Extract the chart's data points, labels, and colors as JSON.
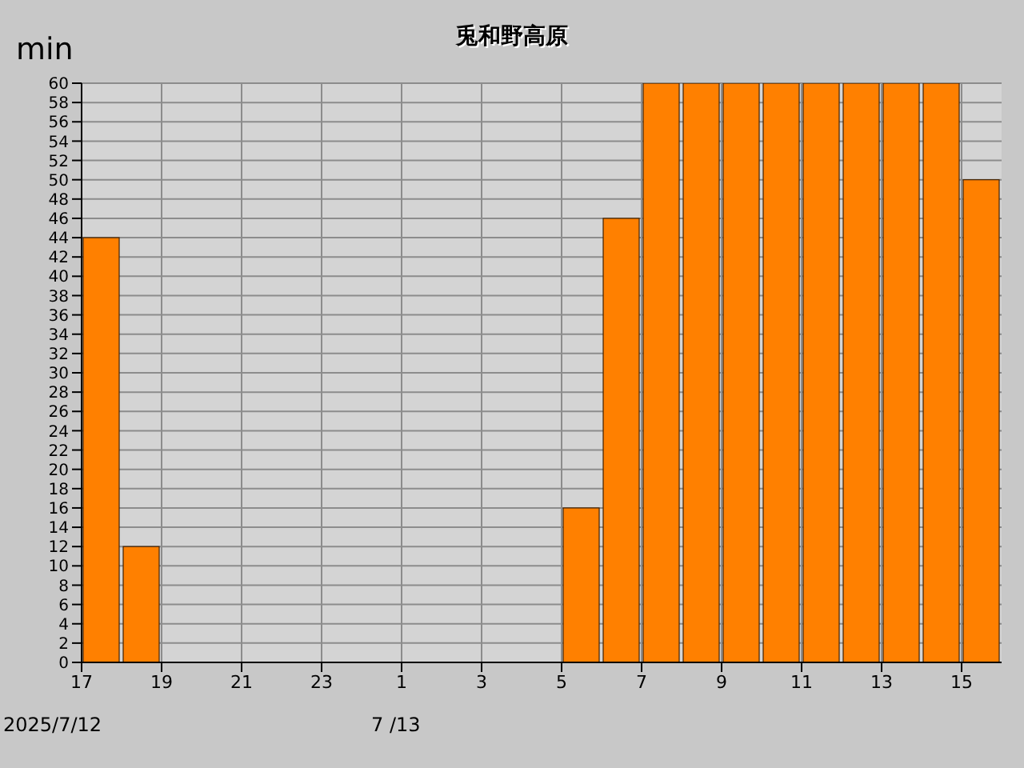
{
  "chart_data": {
    "type": "bar",
    "title": "兎和野高原",
    "ylabel": "min",
    "x": [
      "2025-07-12T17:30",
      "2025-07-12T18:30",
      "2025-07-12T19:30",
      "2025-07-12T20:30",
      "2025-07-12T21:30",
      "2025-07-12T22:30",
      "2025-07-12T23:30",
      "2025-07-13T00:30",
      "2025-07-13T01:30",
      "2025-07-13T02:30",
      "2025-07-13T03:30",
      "2025-07-13T04:30",
      "2025-07-13T05:30",
      "2025-07-13T06:30",
      "2025-07-13T07:30",
      "2025-07-13T08:30",
      "2025-07-13T09:30",
      "2025-07-13T10:30",
      "2025-07-13T11:30",
      "2025-07-13T12:30",
      "2025-07-13T13:30",
      "2025-07-13T14:30",
      "2025-07-13T15:30"
    ],
    "values": [
      44,
      12,
      0,
      0,
      0,
      0,
      0,
      0,
      0,
      0,
      0,
      0,
      16,
      46,
      60,
      60,
      60,
      60,
      60,
      60,
      60,
      60,
      50
    ],
    "color": "#ff8000",
    "xlim": [
      "2025-07-12T17:00",
      "2025-07-13T16:00"
    ],
    "xticks": [
      {
        "value": "2025-07-12T17:00",
        "label": "17"
      },
      {
        "value": "2025-07-12T19:00",
        "label": "19"
      },
      {
        "value": "2025-07-12T21:00",
        "label": "21"
      },
      {
        "value": "2025-07-12T23:00",
        "label": "23"
      },
      {
        "value": "2025-07-13T01:00",
        "label": "1"
      },
      {
        "value": "2025-07-13T03:00",
        "label": "3"
      },
      {
        "value": "2025-07-13T05:00",
        "label": "5"
      },
      {
        "value": "2025-07-13T07:00",
        "label": "7"
      },
      {
        "value": "2025-07-13T09:00",
        "label": "9"
      },
      {
        "value": "2025-07-13T11:00",
        "label": "11"
      },
      {
        "value": "2025-07-13T13:00",
        "label": "13"
      },
      {
        "value": "2025-07-13T15:00",
        "label": "15"
      }
    ],
    "ylim": [
      0,
      60
    ],
    "yticks": [
      0,
      2,
      4,
      6,
      8,
      10,
      12,
      14,
      16,
      18,
      20,
      22,
      24,
      26,
      28,
      30,
      32,
      34,
      36,
      38,
      40,
      42,
      44,
      46,
      48,
      50,
      52,
      54,
      56,
      58,
      60
    ],
    "grid": true,
    "annotations": [
      "2025/7/12",
      "7 /13"
    ]
  }
}
